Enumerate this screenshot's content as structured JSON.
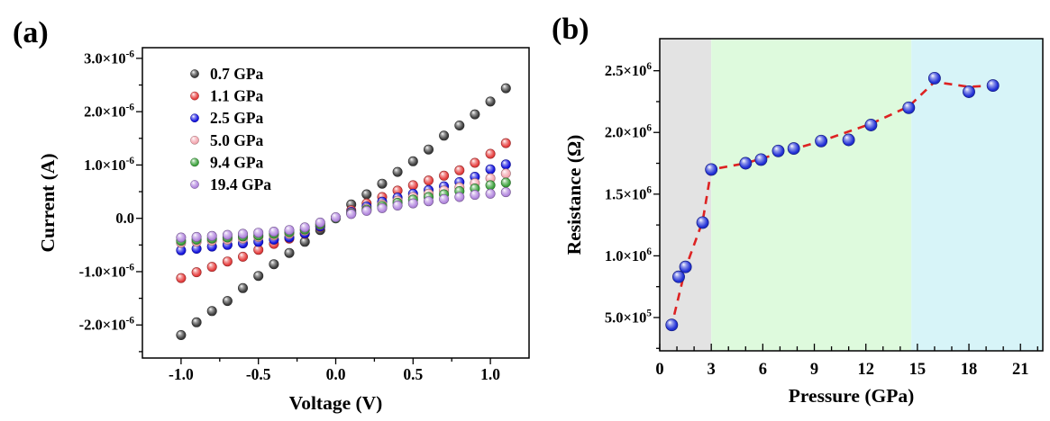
{
  "figure": {
    "background": "#ffffff",
    "panels": {
      "a": {
        "tag": "(a)"
      },
      "b": {
        "tag": "(b)"
      }
    }
  },
  "chart_data": [
    {
      "id": "iv-curves",
      "panel": "a",
      "type": "scatter",
      "title": "",
      "xlabel": "Voltage (V)",
      "ylabel": "Current (A)",
      "xlim": [
        -1.25,
        1.25
      ],
      "ylim": [
        -2.62e-06,
        3.2e-06
      ],
      "grid": false,
      "legend_position": "upper-left-inside",
      "x_major_ticks": [
        -1.0,
        -0.5,
        0.0,
        0.5,
        1.0
      ],
      "x_tick_labels": [
        "-1.0",
        "-0.5",
        "0.0",
        "0.5",
        "1.0"
      ],
      "x_minor_ticks": [
        -0.75,
        -0.25,
        0.25,
        0.75
      ],
      "y_major_ticks": [
        3e-06,
        2e-06,
        1e-06,
        0.0,
        -1e-06,
        -2e-06
      ],
      "y_tick_labels": [
        "3.0×10^-6",
        "2.0×10^-6",
        "1.0×10^-6",
        "0.0",
        "-1.0×10^-6",
        "-2.0×10^-6"
      ],
      "y_minor_ticks": [
        2.5e-06,
        1.5e-06,
        5e-07,
        -5e-07,
        -1.5e-06,
        -2.5e-06
      ],
      "x_volts": [
        -1.0,
        -0.9,
        -0.8,
        -0.7,
        -0.6,
        -0.5,
        -0.4,
        -0.3,
        -0.2,
        -0.1,
        0.0,
        0.1,
        0.2,
        0.3,
        0.4,
        0.5,
        0.6,
        0.7,
        0.8,
        0.9,
        1.0,
        1.1
      ],
      "series": [
        {
          "name": "0.7 GPa",
          "color": "#3e3e3e",
          "currents_amp": [
            -2.19e-06,
            -1.95e-06,
            -1.74e-06,
            -1.55e-06,
            -1.31e-06,
            -1.08e-06,
            -8.6e-07,
            -6.5e-07,
            -4.4e-07,
            -2.2e-07,
            0.0,
            2.6e-07,
            4.5e-07,
            6.5e-07,
            8.7e-07,
            1.07e-06,
            1.29e-06,
            1.55e-06,
            1.74e-06,
            1.95e-06,
            2.19e-06,
            2.44e-06
          ]
        },
        {
          "name": "1.1 GPa",
          "color": "#e63e3e",
          "currents_amp": [
            -1.12e-06,
            -1.01e-06,
            -9.1e-07,
            -8.1e-07,
            -7.2e-07,
            -5.9e-07,
            -4.8e-07,
            -3.8e-07,
            -2.9e-07,
            -1.6e-07,
            1e-08,
            1.5e-07,
            2.8e-07,
            4e-07,
            5.2e-07,
            6.2e-07,
            7.1e-07,
            8e-07,
            9e-07,
            1.04e-06,
            1.21e-06,
            1.41e-06
          ]
        },
        {
          "name": "2.5 GPa",
          "color": "#1515e0",
          "currents_amp": [
            -6e-07,
            -5.7e-07,
            -5.3e-07,
            -5e-07,
            -4.7e-07,
            -4.4e-07,
            -4e-07,
            -3.6e-07,
            -2.8e-07,
            -1.5e-07,
            1e-08,
            1.2e-07,
            2.2e-07,
            3.1e-07,
            3.9e-07,
            4.6e-07,
            5.3e-07,
            6e-07,
            6.8e-07,
            7.8e-07,
            9.2e-07,
            1.01e-06
          ]
        },
        {
          "name": "5.0 GPa",
          "color": "#f4a7b0",
          "currents_amp": [
            -4.6e-07,
            -4.4e-07,
            -4.2e-07,
            -4e-07,
            -3.8e-07,
            -3.5e-07,
            -3.2e-07,
            -2.9e-07,
            -2.3e-07,
            -1.2e-07,
            1e-08,
            1e-07,
            1.8e-07,
            2.6e-07,
            3.3e-07,
            4e-07,
            4.6e-07,
            5.2e-07,
            5.8e-07,
            6.6e-07,
            7.5e-07,
            8.4e-07
          ]
        },
        {
          "name": "9.4 GPa",
          "color": "#3da23d",
          "currents_amp": [
            -4.2e-07,
            -4e-07,
            -3.8e-07,
            -3.6e-07,
            -3.4e-07,
            -3.2e-07,
            -2.9e-07,
            -2.6e-07,
            -2.1e-07,
            -1.1e-07,
            1e-08,
            9e-08,
            1.6e-07,
            2.3e-07,
            2.9e-07,
            3.5e-07,
            4e-07,
            4.5e-07,
            5.1e-07,
            5.6e-07,
            6.2e-07,
            6.7e-07
          ]
        },
        {
          "name": "19.4 GPa",
          "color": "#b287de",
          "currents_amp": [
            -3.6e-07,
            -3.5e-07,
            -3.3e-07,
            -3.1e-07,
            -2.9e-07,
            -2.7e-07,
            -2.5e-07,
            -2.2e-07,
            -1.7e-07,
            -8e-08,
            2e-08,
            8e-08,
            1.4e-07,
            1.9e-07,
            2.4e-07,
            2.8e-07,
            3.2e-07,
            3.6e-07,
            4e-07,
            4.4e-07,
            4.6e-07,
            4.9e-07
          ]
        }
      ]
    },
    {
      "id": "resistance-vs-pressure",
      "panel": "b",
      "type": "scatter",
      "title": "",
      "xlabel": "Pressure (GPa)",
      "ylabel": "Resistance (Ω)",
      "xlim": [
        0,
        22.3
      ],
      "ylim": [
        230000.0,
        2760000.0
      ],
      "grid": false,
      "x_major_ticks": [
        0,
        3,
        6,
        9,
        12,
        15,
        18,
        21
      ],
      "x_tick_labels": [
        "0",
        "3",
        "6",
        "9",
        "12",
        "15",
        "18",
        "21"
      ],
      "x_minor_ticks": [
        1,
        2,
        4,
        5,
        7,
        8,
        10,
        11,
        13,
        14,
        16,
        17,
        19,
        20,
        22
      ],
      "y_major_ticks": [
        2500000.0,
        2000000.0,
        1500000.0,
        1000000.0,
        500000.0
      ],
      "y_tick_labels": [
        "2.5×10^6",
        "2.0×10^6",
        "1.5×10^6",
        "1.0×10^6",
        "5.0×10^5"
      ],
      "y_minor_ticks": [
        2250000.0,
        1750000.0,
        1250000.0,
        750000.0,
        250000.0
      ],
      "regions": [
        {
          "name": "low-pressure-phase",
          "from": 0.0,
          "to": 3.0,
          "color": "#e3e3e3"
        },
        {
          "name": "mid-pressure-phase",
          "from": 3.0,
          "to": 14.65,
          "color": "#defadd"
        },
        {
          "name": "high-pressure-phase",
          "from": 14.65,
          "to": 22.3,
          "color": "#d7f4f8"
        }
      ],
      "marker": {
        "color": "#2130d6",
        "radius_px": 6.6
      },
      "points": {
        "pressure_gpa": [
          0.7,
          1.1,
          1.5,
          2.5,
          3.0,
          5.0,
          5.9,
          6.9,
          7.8,
          9.4,
          11.0,
          12.3,
          14.5,
          16.0,
          18.0,
          19.4
        ],
        "resistance_ohm": [
          440000.0,
          830000.0,
          910000.0,
          1270000.0,
          1700000.0,
          1750000.0,
          1780000.0,
          1850000.0,
          1870000.0,
          1930000.0,
          1940000.0,
          2060000.0,
          2200000.0,
          2440000.0,
          2330000.0,
          2380000.0
        ]
      },
      "trend_line": {
        "color": "#dd2222",
        "style": "dashed",
        "points": [
          [
            0.65,
            410000.0
          ],
          [
            1.5,
            900000.0
          ],
          [
            2.5,
            1280000.0
          ],
          [
            3.0,
            1700000.0
          ],
          [
            5.0,
            1750000.0
          ],
          [
            9.4,
            1930000.0
          ],
          [
            12.3,
            2070000.0
          ],
          [
            14.5,
            2210000.0
          ],
          [
            16.0,
            2410000.0
          ],
          [
            18.0,
            2370000.0
          ],
          [
            19.5,
            2380000.0
          ]
        ]
      }
    }
  ]
}
